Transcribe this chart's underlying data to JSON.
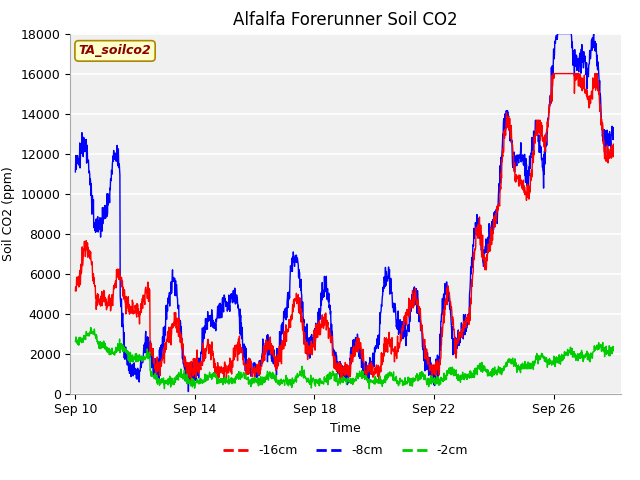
{
  "title": "Alfalfa Forerunner Soil CO2",
  "xlabel": "Time",
  "ylabel": "Soil CO2 (ppm)",
  "ylim": [
    0,
    18000
  ],
  "legend_label": "TA_soilco2",
  "series_labels": [
    "-16cm",
    "-8cm",
    "-2cm"
  ],
  "series_colors": [
    "#ff0000",
    "#0000ff",
    "#00cc00"
  ],
  "fig_bg_color": "#ffffff",
  "plot_bg_color": "#f0f0f0",
  "grid_color": "#ffffff",
  "title_fontsize": 12,
  "axis_fontsize": 9,
  "tick_fontsize": 9,
  "legend_fontsize": 9,
  "line_width": 1.0
}
